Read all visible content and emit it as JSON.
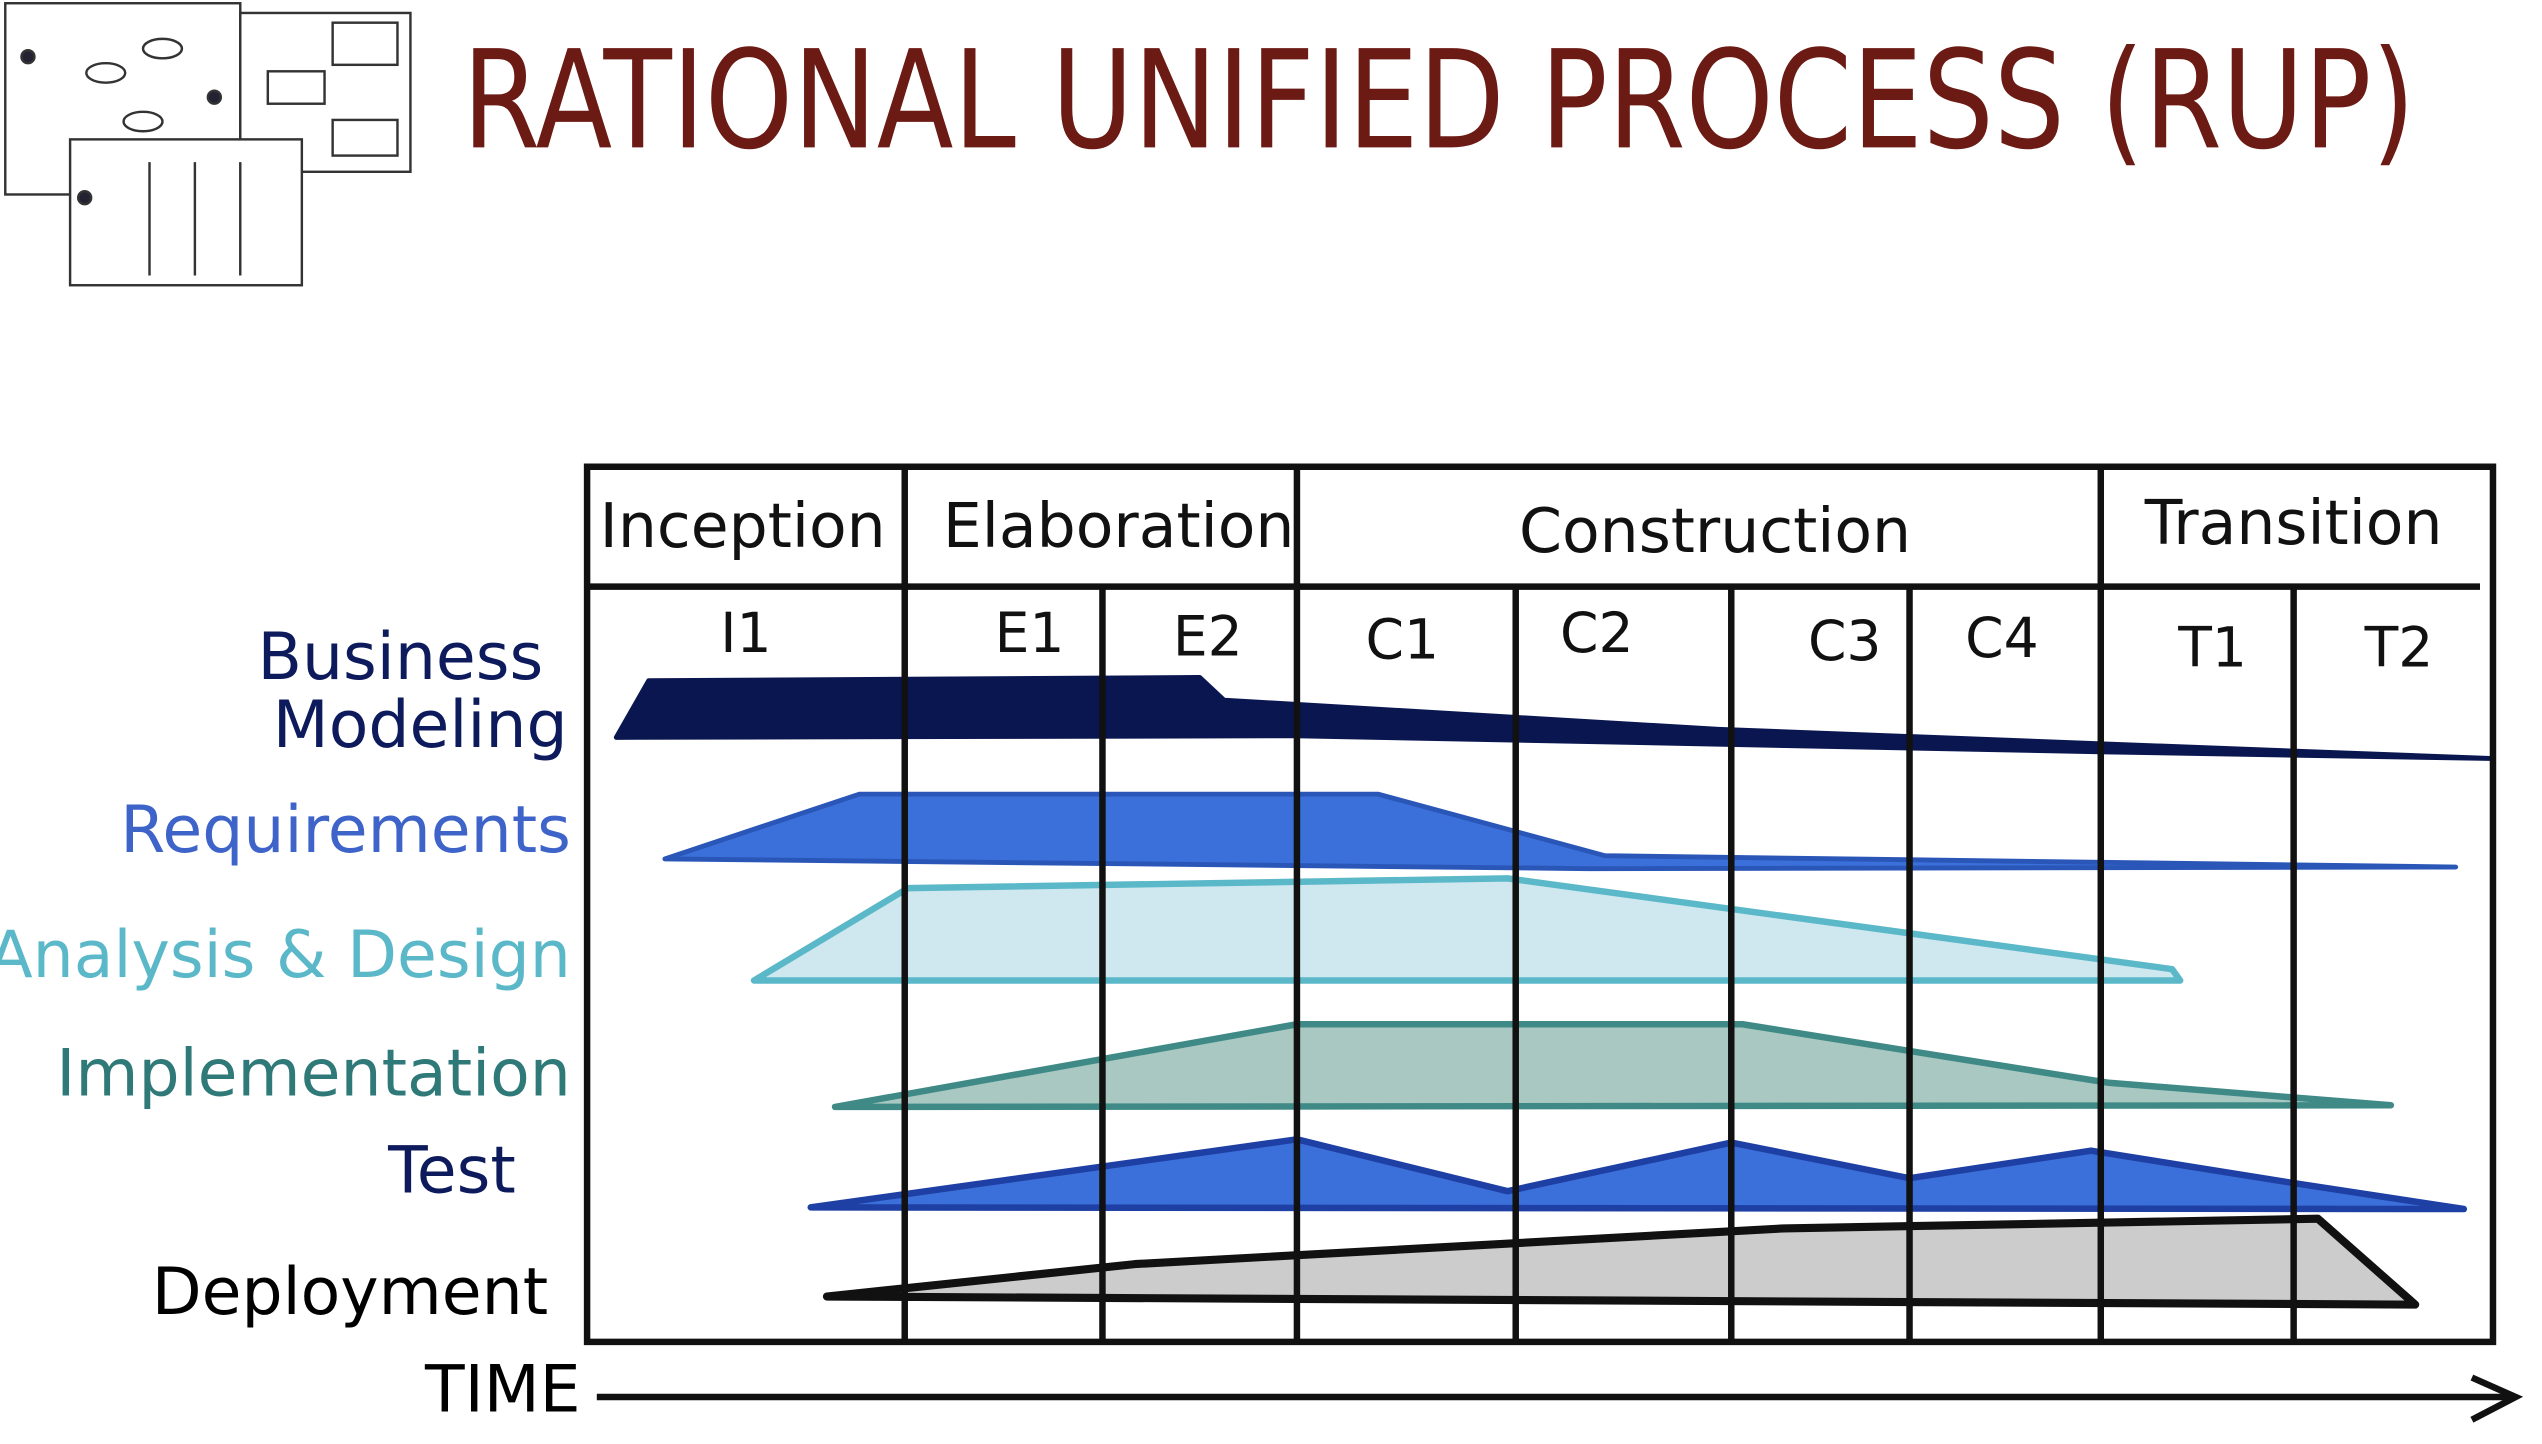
{
  "title": "RATIONAL UNIFIED PROCESS (RUP)",
  "phases": [
    "Inception",
    "Elaboration",
    "Construction",
    "Transition"
  ],
  "iterations": [
    "I1",
    "E1",
    "E2",
    "C1",
    "C2",
    "C3",
    "C4",
    "T1",
    "T2"
  ],
  "disciplines": [
    [
      "Business",
      "Modeling"
    ],
    [
      "Requirements"
    ],
    [
      "Analysis & Design"
    ],
    [
      "Implementation"
    ],
    [
      "Test"
    ],
    [
      "Deployment"
    ]
  ],
  "time_label": "TIME"
}
